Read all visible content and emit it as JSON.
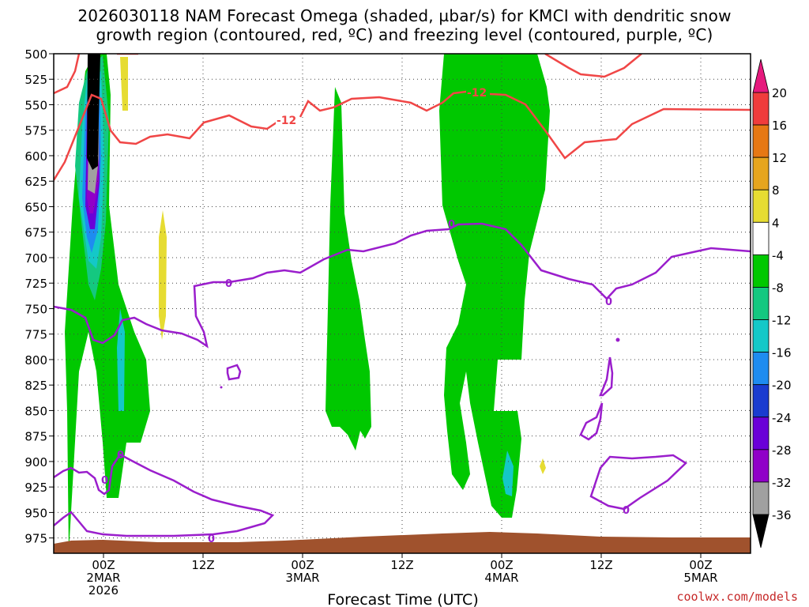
{
  "chart_data": {
    "type": "heatmap",
    "title_line1": "2026030118 NAM Forecast Omega (shaded, µbar/s) for KMCI with dendritic snow",
    "title_line2": "growth region (contoured, red, ºC) and freezing level (contoured, purple, ºC)",
    "xlabel": "Forecast Time (UTC)",
    "ylabel": "",
    "y_axis": {
      "unit": "hPa",
      "inverted": true,
      "range": [
        500,
        990
      ],
      "ticks": [
        500,
        525,
        550,
        575,
        600,
        625,
        650,
        675,
        700,
        725,
        750,
        775,
        800,
        825,
        850,
        875,
        900,
        925,
        950,
        975
      ]
    },
    "x_axis": {
      "unit": "hours since 2026030118",
      "range": [
        0,
        84
      ],
      "ticks": [
        {
          "hour": 6,
          "line1": "00Z",
          "line2": "2MAR",
          "line3": "2026"
        },
        {
          "hour": 18,
          "line1": "12Z",
          "line2": "",
          "line3": ""
        },
        {
          "hour": 30,
          "line1": "00Z",
          "line2": "3MAR",
          "line3": ""
        },
        {
          "hour": 42,
          "line1": "12Z",
          "line2": "",
          "line3": ""
        },
        {
          "hour": 54,
          "line1": "00Z",
          "line2": "4MAR",
          "line3": ""
        },
        {
          "hour": 66,
          "line1": "12Z",
          "line2": "",
          "line3": ""
        },
        {
          "hour": 78,
          "line1": "00Z",
          "line2": "5MAR",
          "line3": ""
        }
      ]
    },
    "grid": true,
    "colorbar": {
      "levels": [
        -36,
        -32,
        -28,
        -24,
        -20,
        -16,
        -12,
        -8,
        -4,
        4,
        8,
        12,
        16,
        20
      ],
      "colors": [
        "#000000",
        "#a0a0a0",
        "#9000c8",
        "#6a00d8",
        "#1a3cd0",
        "#1e8cf0",
        "#14c8c8",
        "#14c880",
        "#00c800",
        "#ffffff",
        "#e6dc32",
        "#e6a51e",
        "#e67814",
        "#f03c3c",
        "#e6197d"
      ],
      "label_values": [
        "20",
        "16",
        "12",
        "8",
        "4",
        "-4",
        "-8",
        "-12",
        "-16",
        "-20",
        "-24",
        "-28",
        "-32",
        "-36"
      ]
    },
    "contours": [
      {
        "name": "dendritic snow growth region",
        "color": "#f04646",
        "level_label": "-12"
      },
      {
        "name": "freezing level",
        "color": "#9a1ecc",
        "level_label": "0"
      }
    ],
    "credit": "coolwx.com/models"
  }
}
